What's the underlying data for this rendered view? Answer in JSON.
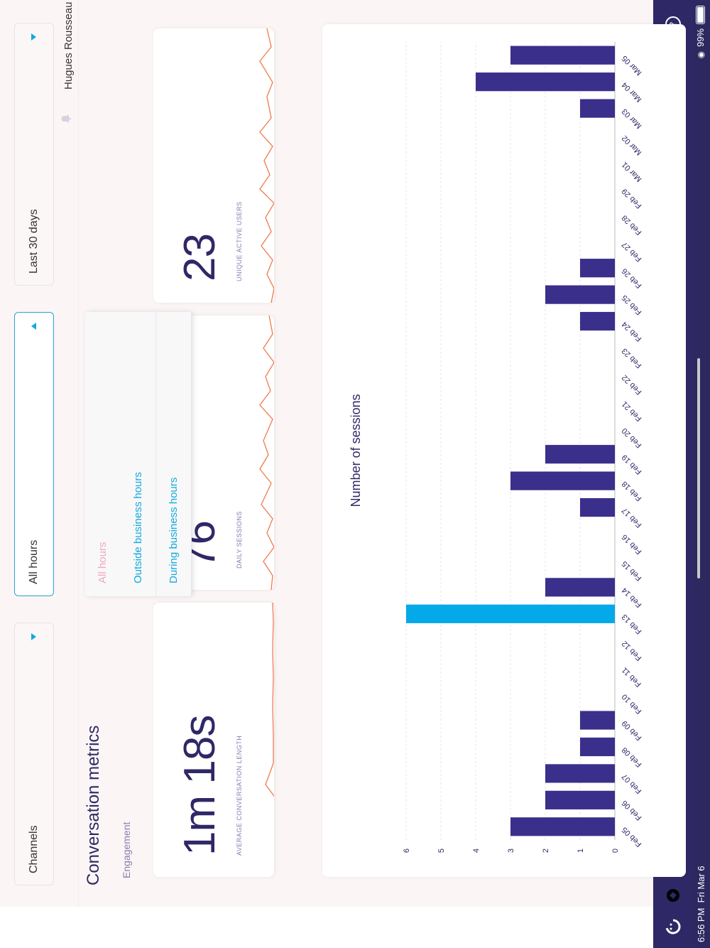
{
  "status_bar": {
    "time": "6:56 PM",
    "date": "Fri Mar 6",
    "battery": "99%"
  },
  "nav": {
    "items": [
      {
        "name": "home-logo-icon"
      },
      {
        "name": "shield-icon"
      },
      {
        "name": "terminal-icon"
      },
      {
        "name": "reports-icon"
      },
      {
        "name": "help-icon"
      }
    ]
  },
  "filters": {
    "channels": "Channels",
    "hours": "All hours",
    "period": "Last 30 days"
  },
  "user": {
    "name": "Hugues Rousseau"
  },
  "page": {
    "title": "Conversation metrics",
    "subtitle": "Engagement"
  },
  "hours_dropdown": {
    "options": [
      "All hours",
      "Outside business hours",
      "During business hours"
    ],
    "selected": "All hours"
  },
  "metrics": [
    {
      "value": "1m 18s",
      "label": "AVERAGE CONVERSATION LENGTH"
    },
    {
      "value": "76",
      "label": "DAILY SESSIONS"
    },
    {
      "value": "23",
      "label": "UNIQUE ACTIVE USERS"
    }
  ],
  "colors": {
    "accent": "#12a9df",
    "bar": "#3b2f8c",
    "bar_highlight": "#04a9ea",
    "spark": "#f07a4c",
    "nav": "#2f2867"
  },
  "chart_data": {
    "type": "bar",
    "title": "Number of sessions",
    "categories": [
      "Feb 05",
      "Feb 06",
      "Feb 07",
      "Feb 08",
      "Feb 09",
      "Feb 10",
      "Feb 11",
      "Feb 12",
      "Feb 13",
      "Feb 14",
      "Feb 15",
      "Feb 16",
      "Feb 17",
      "Feb 18",
      "Feb 19",
      "Feb 20",
      "Feb 21",
      "Feb 22",
      "Feb 23",
      "Feb 24",
      "Feb 25",
      "Feb 26",
      "Feb 27",
      "Feb 28",
      "Feb 29",
      "Mar 01",
      "Mar 02",
      "Mar 03",
      "Mar 04",
      "Mar 05"
    ],
    "values": [
      3,
      2,
      2,
      1,
      1,
      0,
      0,
      0,
      6,
      2,
      0,
      0,
      1,
      3,
      2,
      0,
      0,
      0,
      0,
      1,
      2,
      1,
      0,
      0,
      0,
      0,
      0,
      1,
      4,
      3
    ],
    "highlighted_category": "Feb 13",
    "yticks": [
      0,
      1,
      2,
      3,
      4,
      5,
      6
    ],
    "ylim": [
      0,
      6
    ],
    "grid": true
  }
}
